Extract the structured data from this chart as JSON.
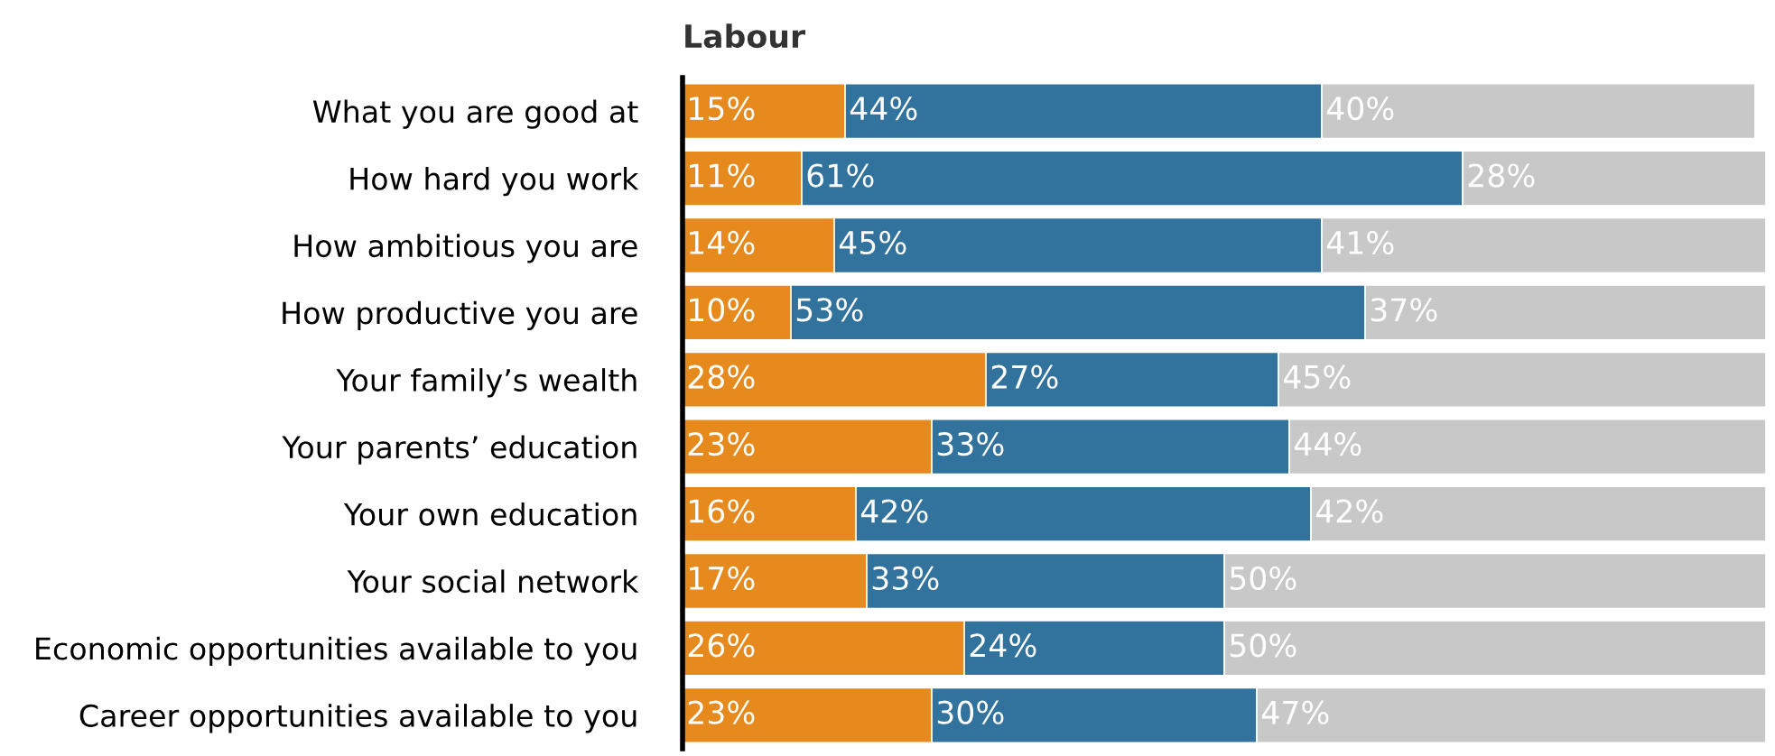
{
  "chart_data": {
    "type": "bar",
    "orientation": "horizontal",
    "stacked": true,
    "title": "Labour",
    "tick_labels": "y",
    "grid": false,
    "categories": [
      "What you are good at",
      "How hard you work",
      "How ambitious you are",
      "How productive you are",
      "Your family’s wealth",
      "Your parents’ education",
      "Your own education",
      "Your social network",
      "Economic opportunities available to you",
      "Career opportunities available to you"
    ],
    "series": [
      {
        "color": "#e68a1e",
        "values": [
          15,
          11,
          14,
          10,
          28,
          23,
          16,
          17,
          26,
          23
        ],
        "value_labels": [
          "15%",
          "11%",
          "14%",
          "10%",
          "28%",
          "23%",
          "16%",
          "17%",
          "26%",
          "23%"
        ]
      },
      {
        "color": "#31739c",
        "values": [
          44,
          61,
          45,
          53,
          27,
          33,
          42,
          33,
          24,
          30
        ],
        "value_labels": [
          "44%",
          "61%",
          "45%",
          "53%",
          "27%",
          "33%",
          "42%",
          "33%",
          "24%",
          "30%"
        ]
      },
      {
        "color": "#c8c8c8",
        "values": [
          40,
          28,
          41,
          37,
          45,
          44,
          42,
          50,
          50,
          47
        ],
        "value_labels": [
          "40%",
          "28%",
          "41%",
          "37%",
          "45%",
          "44%",
          "42%",
          "50%",
          "50%",
          "47%"
        ]
      }
    ]
  }
}
